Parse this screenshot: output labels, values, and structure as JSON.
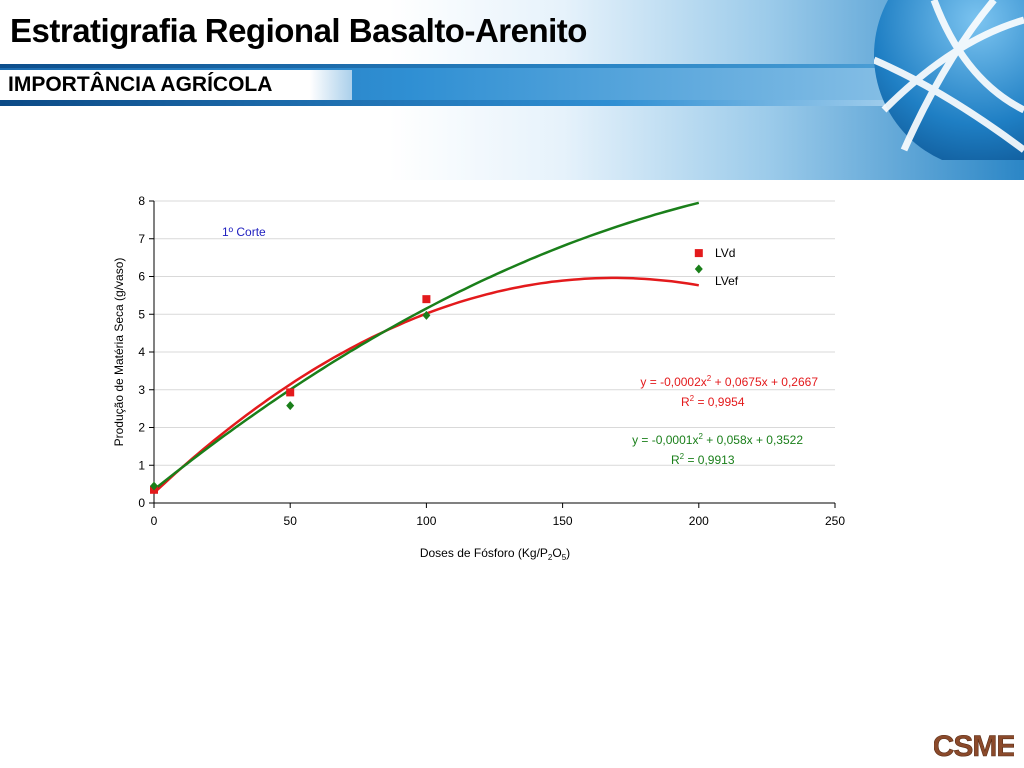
{
  "slide": {
    "title": "Estratigrafia Regional Basalto-Arenito",
    "subtitle": "IMPORTÂNCIA AGRÍCOLA",
    "logo_text": "CSME",
    "globe_icon": "globe-icon"
  },
  "chart_data": {
    "type": "scatter",
    "x_axis": {
      "label": "Doses de Fósforo (Kg/P",
      "label_sub1": "2",
      "label_mid": "O",
      "label_sub2": "5",
      "label_end": ")",
      "range": [
        0,
        250
      ],
      "ticks": [
        "0",
        "50",
        "100",
        "150",
        "200",
        "250"
      ]
    },
    "y_axis": {
      "label": "Produção de Matéria Seca (g/vaso)",
      "range": [
        0,
        8
      ],
      "ticks": [
        "0",
        "1",
        "2",
        "3",
        "4",
        "5",
        "6",
        "7",
        "8"
      ]
    },
    "grid": "horizontal",
    "annotation": "1º Corte",
    "series": [
      {
        "name": "LVd",
        "color": "#e31a1c",
        "marker": "square",
        "x": [
          0,
          50,
          100,
          200
        ],
        "y": [
          0.35,
          2.93,
          5.4,
          6.62
        ],
        "trend": {
          "a": -0.0002,
          "b": 0.0675,
          "c": 0.2667,
          "x_range": [
            0,
            200
          ]
        },
        "equation": "y = -0,0002x",
        "eq_exp": "2",
        "eq_rest": " + 0,0675x + 0,2667",
        "r2_label": "R",
        "r2_exp": "2",
        "r2_rest": " = 0,9954"
      },
      {
        "name": "LVef",
        "color": "#1a7f1a",
        "marker": "diamond",
        "x": [
          0,
          50,
          100,
          200
        ],
        "y": [
          0.45,
          2.58,
          4.97,
          6.2
        ],
        "trend": {
          "a": -0.0001,
          "b": 0.058,
          "c": 0.3522,
          "x_range": [
            0,
            200
          ]
        },
        "equation": "y = -0,0001x",
        "eq_exp": "2",
        "eq_rest": " + 0,058x + 0,3522",
        "r2_label": "R",
        "r2_exp": "2",
        "r2_rest": " = 0,9913"
      }
    ]
  }
}
